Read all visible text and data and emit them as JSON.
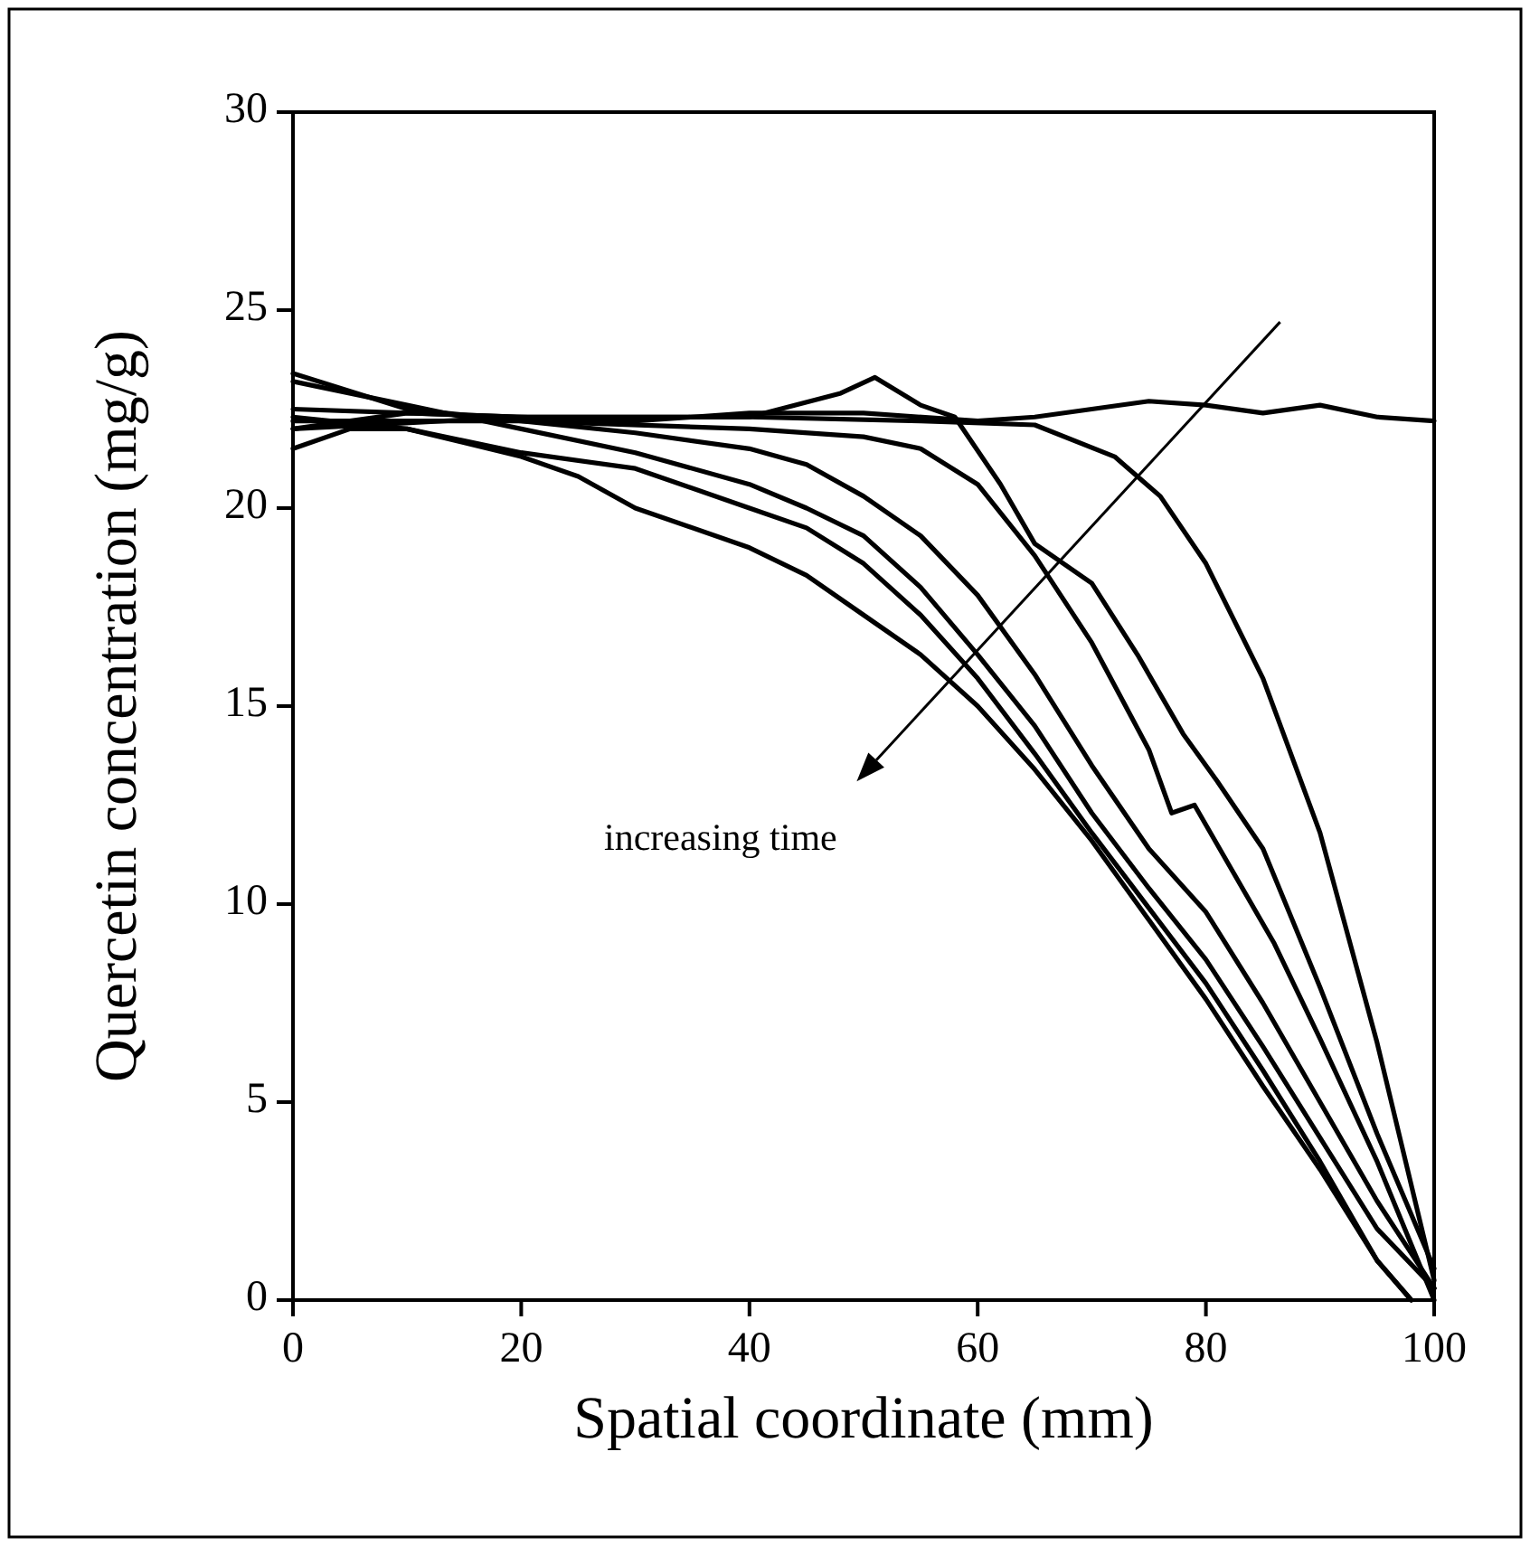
{
  "chart_data": {
    "type": "line",
    "xlabel": "Spatial coordinate (mm)",
    "ylabel": "Quercetin concentration (mg/g)",
    "xlim": [
      0,
      100
    ],
    "ylim": [
      0,
      30
    ],
    "xticks": [
      0,
      20,
      40,
      60,
      80,
      100
    ],
    "yticks": [
      0,
      5,
      10,
      15,
      20,
      25,
      30
    ],
    "grid": false,
    "marker": "none",
    "line_style": "solid",
    "annotations": [
      "increasing time"
    ],
    "series": [
      {
        "color": "#000000",
        "x": [
          0,
          10,
          20,
          30,
          40,
          50,
          60,
          65,
          70,
          75,
          80,
          85,
          90,
          95,
          100
        ],
        "values": [
          22.0,
          22.4,
          22.3,
          22.2,
          22.4,
          22.4,
          22.2,
          22.3,
          22.5,
          22.7,
          22.6,
          22.4,
          22.6,
          22.3,
          22.2
        ]
      },
      {
        "color": "#000000",
        "x": [
          0,
          20,
          40,
          55,
          65,
          72,
          76,
          80,
          85,
          90,
          95,
          100
        ],
        "values": [
          22.0,
          22.3,
          22.3,
          22.2,
          22.1,
          21.3,
          20.3,
          18.6,
          15.7,
          11.8,
          6.5,
          0.5
        ]
      },
      {
        "color": "#000000",
        "x": [
          0,
          20,
          40,
          48,
          51,
          55,
          58,
          62,
          65,
          70,
          74,
          78,
          81,
          85,
          90,
          95,
          100
        ],
        "values": [
          22.5,
          22.3,
          22.3,
          22.9,
          23.3,
          22.6,
          22.3,
          20.6,
          19.1,
          18.1,
          16.3,
          14.3,
          13.1,
          11.4,
          7.9,
          4.2,
          0.8
        ]
      },
      {
        "color": "#000000",
        "x": [
          0,
          20,
          40,
          50,
          55,
          60,
          65,
          70,
          75,
          77,
          79,
          82,
          86,
          90,
          95,
          100
        ],
        "values": [
          22.2,
          22.2,
          22.0,
          21.8,
          21.5,
          20.6,
          18.8,
          16.6,
          13.9,
          12.3,
          12.5,
          11.0,
          9.0,
          6.6,
          3.5,
          0
        ]
      },
      {
        "color": "#000000",
        "x": [
          0,
          10,
          20,
          30,
          40,
          45,
          50,
          55,
          60,
          65,
          70,
          75,
          80,
          85,
          90,
          95,
          100
        ],
        "values": [
          23.4,
          22.5,
          22.2,
          21.9,
          21.5,
          21.1,
          20.3,
          19.3,
          17.8,
          15.8,
          13.5,
          11.4,
          9.8,
          7.5,
          5.0,
          2.5,
          0.3
        ]
      },
      {
        "color": "#000000",
        "x": [
          0,
          10,
          20,
          30,
          40,
          45,
          50,
          55,
          60,
          65,
          70,
          75,
          80,
          85,
          90,
          95,
          100
        ],
        "values": [
          23.2,
          22.6,
          22.0,
          21.4,
          20.6,
          20.0,
          19.3,
          18.0,
          16.3,
          14.5,
          12.3,
          10.4,
          8.6,
          6.4,
          4.1,
          1.8,
          0.3
        ]
      },
      {
        "color": "#000000",
        "x": [
          0,
          10,
          20,
          30,
          40,
          45,
          50,
          55,
          60,
          65,
          70,
          75,
          80,
          85,
          90,
          95,
          98
        ],
        "values": [
          22.3,
          22.0,
          21.4,
          21.0,
          20.0,
          19.5,
          18.6,
          17.3,
          15.7,
          13.8,
          11.8,
          9.9,
          8.0,
          5.8,
          3.5,
          1.0,
          0
        ]
      },
      {
        "color": "#000000",
        "x": [
          0,
          5,
          10,
          20,
          25,
          30,
          40,
          45,
          50,
          55,
          60,
          65,
          70,
          75,
          80,
          85,
          90,
          95,
          98
        ],
        "values": [
          21.5,
          22.0,
          22.0,
          21.3,
          20.8,
          20.0,
          19.0,
          18.3,
          17.3,
          16.3,
          15.0,
          13.4,
          11.6,
          9.6,
          7.6,
          5.4,
          3.3,
          1.0,
          0
        ]
      }
    ]
  }
}
